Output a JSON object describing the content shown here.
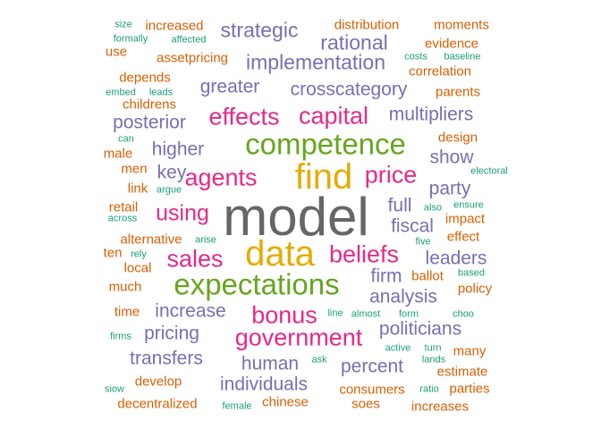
{
  "palette": {
    "gray": "#666666",
    "gold": "#E6AB02",
    "green": "#66A61E",
    "magenta": "#E7298A",
    "purple": "#7570B3",
    "orange": "#D95F02",
    "teal": "#1B9E77"
  },
  "words": [
    {
      "text": "model",
      "color": "gray"
    },
    {
      "text": "find",
      "color": "gold"
    },
    {
      "text": "data",
      "color": "gold"
    },
    {
      "text": "competence",
      "color": "green"
    },
    {
      "text": "expectations",
      "color": "green"
    },
    {
      "text": "capital",
      "color": "magenta"
    },
    {
      "text": "effects",
      "color": "magenta"
    },
    {
      "text": "agents",
      "color": "magenta"
    },
    {
      "text": "price",
      "color": "magenta"
    },
    {
      "text": "beliefs",
      "color": "magenta"
    },
    {
      "text": "sales",
      "color": "magenta"
    },
    {
      "text": "using",
      "color": "magenta"
    },
    {
      "text": "bonus",
      "color": "magenta"
    },
    {
      "text": "government",
      "color": "magenta"
    },
    {
      "text": "strategic",
      "color": "purple"
    },
    {
      "text": "rational",
      "color": "purple"
    },
    {
      "text": "implementation",
      "color": "purple"
    },
    {
      "text": "greater",
      "color": "purple"
    },
    {
      "text": "crosscategory",
      "color": "purple"
    },
    {
      "text": "multipliers",
      "color": "purple"
    },
    {
      "text": "posterior",
      "color": "purple"
    },
    {
      "text": "higher",
      "color": "purple"
    },
    {
      "text": "key",
      "color": "purple"
    },
    {
      "text": "show",
      "color": "purple"
    },
    {
      "text": "party",
      "color": "purple"
    },
    {
      "text": "full",
      "color": "purple"
    },
    {
      "text": "fiscal",
      "color": "purple"
    },
    {
      "text": "leaders",
      "color": "purple"
    },
    {
      "text": "firm",
      "color": "purple"
    },
    {
      "text": "analysis",
      "color": "purple"
    },
    {
      "text": "increase",
      "color": "purple"
    },
    {
      "text": "pricing",
      "color": "purple"
    },
    {
      "text": "politicians",
      "color": "purple"
    },
    {
      "text": "transfers",
      "color": "purple"
    },
    {
      "text": "human",
      "color": "purple"
    },
    {
      "text": "percent",
      "color": "purple"
    },
    {
      "text": "individuals",
      "color": "purple"
    },
    {
      "text": "increased",
      "color": "orange"
    },
    {
      "text": "distribution",
      "color": "orange"
    },
    {
      "text": "moments",
      "color": "orange"
    },
    {
      "text": "evidence",
      "color": "orange"
    },
    {
      "text": "use",
      "color": "orange"
    },
    {
      "text": "assetpricing",
      "color": "orange"
    },
    {
      "text": "correlation",
      "color": "orange"
    },
    {
      "text": "depends",
      "color": "orange"
    },
    {
      "text": "parents",
      "color": "orange"
    },
    {
      "text": "childrens",
      "color": "orange"
    },
    {
      "text": "design",
      "color": "orange"
    },
    {
      "text": "male",
      "color": "orange"
    },
    {
      "text": "men",
      "color": "orange"
    },
    {
      "text": "link",
      "color": "orange"
    },
    {
      "text": "retail",
      "color": "orange"
    },
    {
      "text": "impact",
      "color": "orange"
    },
    {
      "text": "effect",
      "color": "orange"
    },
    {
      "text": "alternative",
      "color": "orange"
    },
    {
      "text": "ten",
      "color": "orange"
    },
    {
      "text": "local",
      "color": "orange"
    },
    {
      "text": "ballot",
      "color": "orange"
    },
    {
      "text": "much",
      "color": "orange"
    },
    {
      "text": "policy",
      "color": "orange"
    },
    {
      "text": "time",
      "color": "orange"
    },
    {
      "text": "many",
      "color": "orange"
    },
    {
      "text": "develop",
      "color": "orange"
    },
    {
      "text": "estimate",
      "color": "orange"
    },
    {
      "text": "consumers",
      "color": "orange"
    },
    {
      "text": "parties",
      "color": "orange"
    },
    {
      "text": "decentralized",
      "color": "orange"
    },
    {
      "text": "chinese",
      "color": "orange"
    },
    {
      "text": "soes",
      "color": "orange"
    },
    {
      "text": "increases",
      "color": "orange"
    },
    {
      "text": "size",
      "color": "teal"
    },
    {
      "text": "formally",
      "color": "teal"
    },
    {
      "text": "affected",
      "color": "teal"
    },
    {
      "text": "costs",
      "color": "teal"
    },
    {
      "text": "baseline",
      "color": "teal"
    },
    {
      "text": "embed",
      "color": "teal"
    },
    {
      "text": "leads",
      "color": "teal"
    },
    {
      "text": "can",
      "color": "teal"
    },
    {
      "text": "electoral",
      "color": "teal"
    },
    {
      "text": "argue",
      "color": "teal"
    },
    {
      "text": "also",
      "color": "teal"
    },
    {
      "text": "ensure",
      "color": "teal"
    },
    {
      "text": "across",
      "color": "teal"
    },
    {
      "text": "arise",
      "color": "teal"
    },
    {
      "text": "five",
      "color": "teal"
    },
    {
      "text": "rely",
      "color": "teal"
    },
    {
      "text": "based",
      "color": "teal"
    },
    {
      "text": "line",
      "color": "teal"
    },
    {
      "text": "almost",
      "color": "teal"
    },
    {
      "text": "form",
      "color": "teal"
    },
    {
      "text": "choo",
      "color": "teal"
    },
    {
      "text": "firms",
      "color": "teal"
    },
    {
      "text": "active",
      "color": "teal"
    },
    {
      "text": "turn",
      "color": "teal"
    },
    {
      "text": "ask",
      "color": "teal"
    },
    {
      "text": "lands",
      "color": "teal"
    },
    {
      "text": "siow",
      "color": "teal"
    },
    {
      "text": "ratio",
      "color": "teal"
    },
    {
      "text": "female",
      "color": "teal"
    }
  ]
}
